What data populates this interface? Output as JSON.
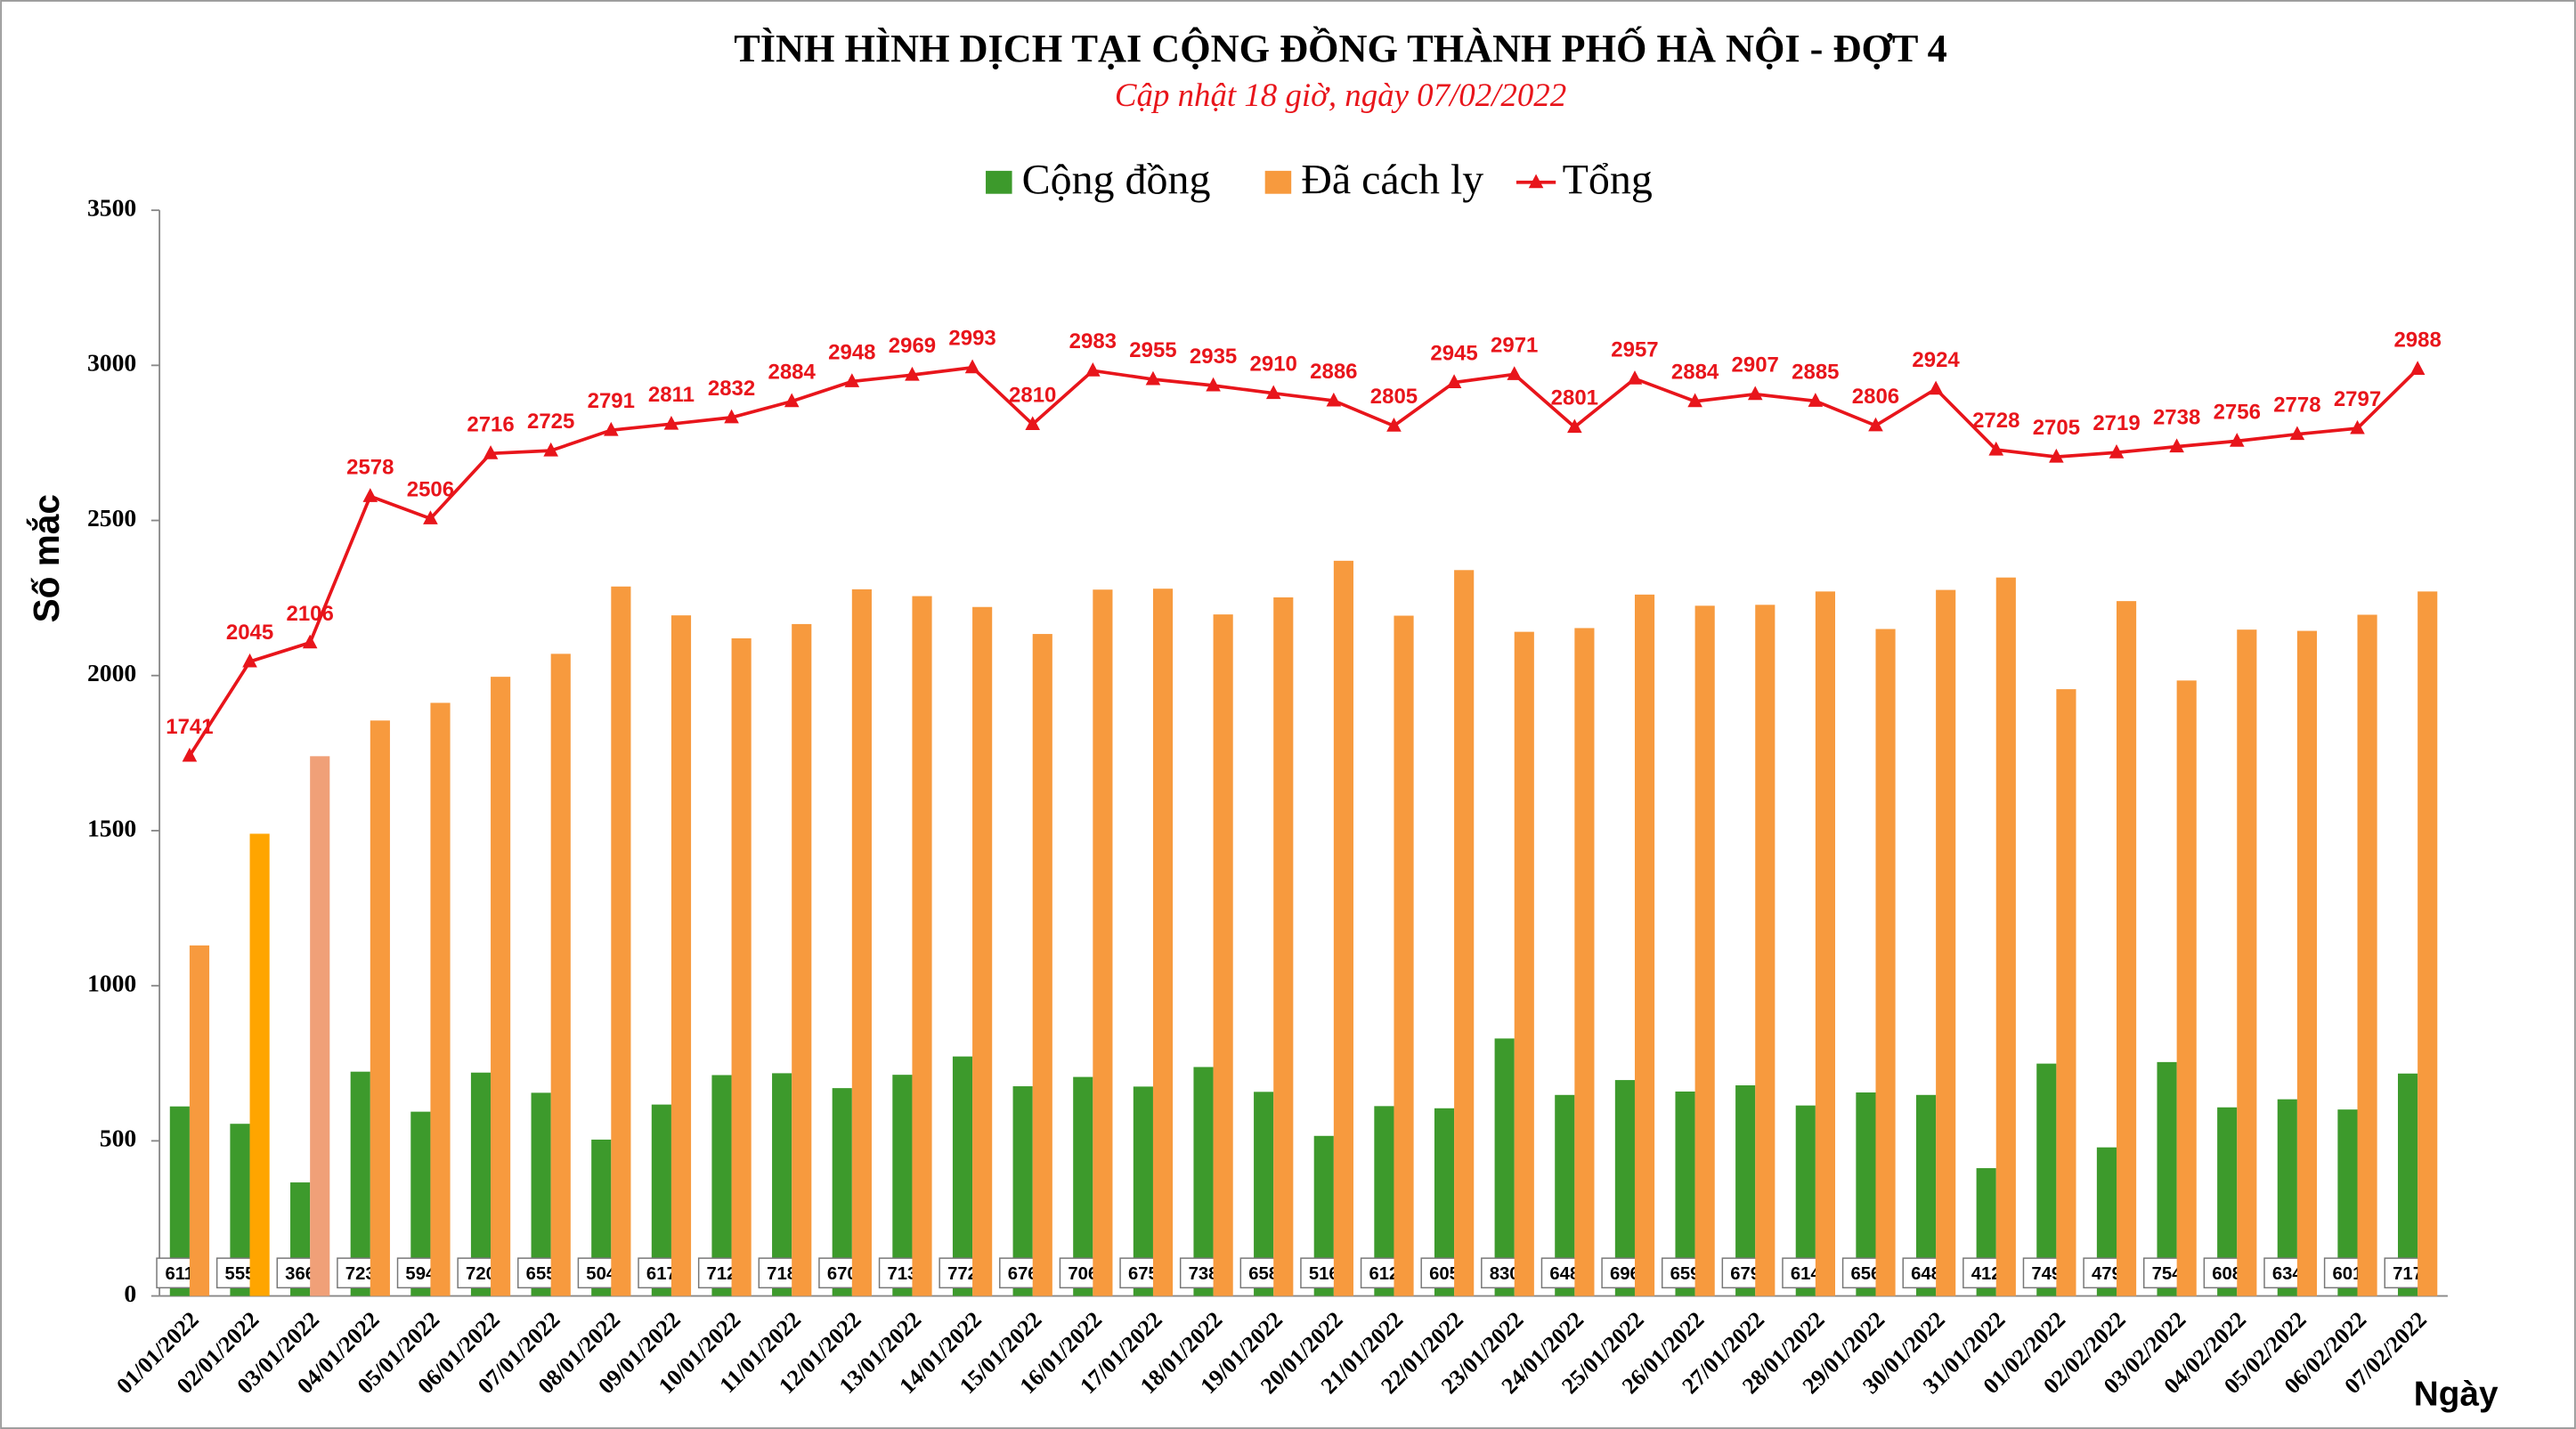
{
  "chart_data": {
    "type": "bar-line",
    "title": "TÌNH HÌNH DỊCH TẠI CỘNG ĐỒNG THÀNH PHỐ HÀ NỘI - ĐỢT 4",
    "subtitle": "Cập nhật 18 giờ, ngày  07/02/2022",
    "y_label": "Số mắc",
    "x_label": "Ngày",
    "categories": [
      "01/01/2022",
      "02/01/2022",
      "03/01/2022",
      "04/01/2022",
      "05/01/2022",
      "06/01/2022",
      "07/01/2022",
      "08/01/2022",
      "09/01/2022",
      "10/01/2022",
      "11/01/2022",
      "12/01/2022",
      "13/01/2022",
      "14/01/2022",
      "15/01/2022",
      "16/01/2022",
      "17/01/2022",
      "18/01/2022",
      "19/01/2022",
      "20/01/2022",
      "21/01/2022",
      "22/01/2022",
      "23/01/2022",
      "24/01/2022",
      "25/01/2022",
      "26/01/2022",
      "27/01/2022",
      "28/01/2022",
      "29/01/2022",
      "30/01/2022",
      "31/01/2022",
      "01/02/2022",
      "02/02/2022",
      "03/02/2022",
      "04/02/2022",
      "05/02/2022",
      "06/02/2022",
      "07/02/2022"
    ],
    "series": [
      {
        "name": "Cộng đồng",
        "color": "#3d9a2c",
        "kind": "bar",
        "labels": "box",
        "values": [
          611,
          555,
          366,
          723,
          594,
          720,
          655,
          504,
          617,
          712,
          718,
          670,
          713,
          772,
          676,
          706,
          675,
          738,
          658,
          516,
          612,
          605,
          830,
          648,
          696,
          659,
          679,
          614,
          656,
          648,
          412,
          749,
          479,
          754,
          608,
          634,
          601,
          717
        ]
      },
      {
        "name": "Đã cách ly",
        "color": "#f79a3e",
        "kind": "bar",
        "point_colors": {
          "1": "#ffa500",
          "2": "#f0a078"
        },
        "values": [
          1130,
          1490,
          1740,
          1855,
          1912,
          1996,
          2070,
          2287,
          2194,
          2120,
          2166,
          2278,
          2256,
          2221,
          2134,
          2277,
          2280,
          2197,
          2252,
          2370,
          2193,
          2340,
          2141,
          2153,
          2261,
          2225,
          2228,
          2271,
          2150,
          2276,
          2316,
          1956,
          2240,
          1984,
          2148,
          2144,
          2196,
          2271
        ]
      },
      {
        "name": "Tổng",
        "color": "#e8151b",
        "kind": "line",
        "labels": "above",
        "values": [
          1741,
          2045,
          2106,
          2578,
          2506,
          2716,
          2725,
          2791,
          2811,
          2832,
          2884,
          2948,
          2969,
          2993,
          2810,
          2983,
          2955,
          2935,
          2910,
          2886,
          2805,
          2945,
          2971,
          2801,
          2957,
          2884,
          2907,
          2885,
          2806,
          2924,
          2728,
          2705,
          2719,
          2738,
          2756,
          2778,
          2797,
          2988
        ]
      }
    ],
    "ylim": [
      0,
      3500
    ],
    "yticks": [
      0,
      500,
      1000,
      1500,
      2000,
      2500,
      3000,
      3500
    ],
    "grid": false
  }
}
